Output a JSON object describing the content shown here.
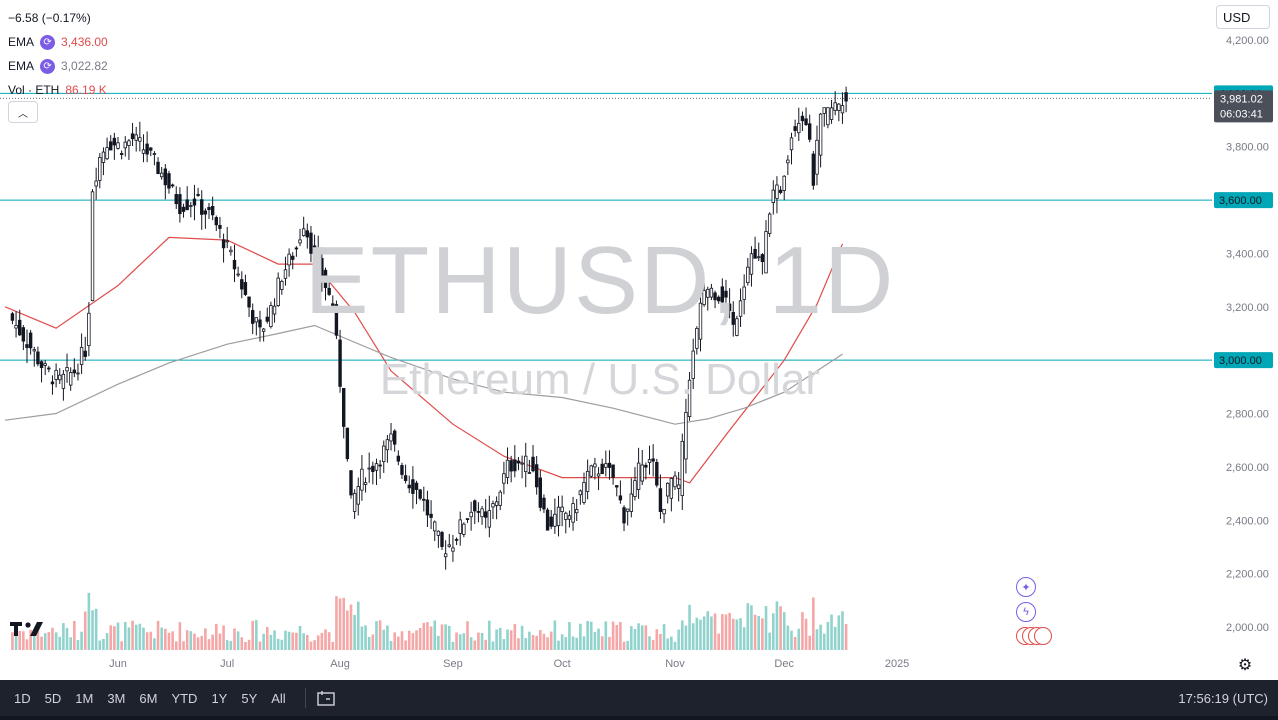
{
  "legend": {
    "change": "−6.58 (−0.17%)",
    "ema1_label": "EMA",
    "ema1_value": "3,436.00",
    "ema2_label": "EMA",
    "ema2_value": "3,022.82",
    "vol_label": "Vol · ETH",
    "vol_value": "86.19 K"
  },
  "currency": "USD",
  "watermark": {
    "symbol": "ETHUSD, 1D",
    "description": "Ethereum / U.S. Dollar"
  },
  "price_label": {
    "price": "3,981.02",
    "countdown": "06:03:41"
  },
  "bottom_bar": {
    "ranges": [
      "1D",
      "5D",
      "1M",
      "3M",
      "6M",
      "YTD",
      "1Y",
      "5Y",
      "All"
    ],
    "clock": "17:56:19 (UTC)"
  },
  "colors": {
    "up": "#26a69a",
    "down": "#ef5350",
    "ema_fast": "#e04b4b",
    "ema_slow": "#9e9e9e",
    "hline": "#00a7b6",
    "price_tag": "#4a4f5a",
    "vol_up": "#8fd3cc",
    "vol_down": "#f4a7a6"
  },
  "icons": [
    "cycle-icon",
    "chevron-up-icon",
    "tradingview-logo-icon",
    "sparkle-icon",
    "lightning-icon",
    "us-flag-icon",
    "gear-icon",
    "compare-icon"
  ],
  "chart_data": {
    "type": "candlestick",
    "title": "ETHUSD, 1D",
    "subtitle": "Ethereum / U.S. Dollar",
    "xlabel": "",
    "ylabel": "",
    "ylim": [
      1900,
      4270
    ],
    "yticks": [
      "4,200.00",
      "3,800.00",
      "3,400.00",
      "3,200.00",
      "2,800.00",
      "2,600.00",
      "2,400.00",
      "2,200.00",
      "2,000.00"
    ],
    "ytick_values": [
      4200,
      3800,
      3400,
      3200,
      2800,
      2600,
      2400,
      2200,
      2000
    ],
    "xtick_labels": [
      "Jun",
      "Jul",
      "Aug",
      "Sep",
      "Oct",
      "Nov",
      "Dec",
      "2025"
    ],
    "xtick_dates": [
      "2024-06-01",
      "2024-07-01",
      "2024-08-01",
      "2024-09-01",
      "2024-10-01",
      "2024-11-01",
      "2024-12-01",
      "2025-01-01"
    ],
    "horizontal_lines": [
      {
        "value": 4000,
        "label": "4,000.00"
      },
      {
        "value": 3600,
        "label": "3,600.00"
      },
      {
        "value": 3000,
        "label": "3,000.00"
      }
    ],
    "last_price": 3981.02,
    "grid": false,
    "series": [
      {
        "name": "EMA",
        "color": "#e04b4b",
        "points": [
          [
            "2024-05-01",
            3200
          ],
          [
            "2024-05-15",
            3120
          ],
          [
            "2024-06-01",
            3280
          ],
          [
            "2024-06-15",
            3460
          ],
          [
            "2024-07-01",
            3450
          ],
          [
            "2024-07-15",
            3360
          ],
          [
            "2024-07-25",
            3360
          ],
          [
            "2024-08-05",
            3180
          ],
          [
            "2024-08-15",
            2960
          ],
          [
            "2024-09-01",
            2760
          ],
          [
            "2024-09-15",
            2640
          ],
          [
            "2024-10-01",
            2560
          ],
          [
            "2024-10-15",
            2560
          ],
          [
            "2024-11-01",
            2560
          ],
          [
            "2024-11-05",
            2540
          ],
          [
            "2024-11-15",
            2720
          ],
          [
            "2024-12-01",
            3000
          ],
          [
            "2024-12-10",
            3210
          ],
          [
            "2024-12-17",
            3436
          ]
        ]
      },
      {
        "name": "EMA",
        "color": "#9e9e9e",
        "points": [
          [
            "2024-05-01",
            2775
          ],
          [
            "2024-05-15",
            2800
          ],
          [
            "2024-06-01",
            2910
          ],
          [
            "2024-06-15",
            2990
          ],
          [
            "2024-07-01",
            3060
          ],
          [
            "2024-07-15",
            3100
          ],
          [
            "2024-07-25",
            3130
          ],
          [
            "2024-08-15",
            3010
          ],
          [
            "2024-09-01",
            2930
          ],
          [
            "2024-09-15",
            2880
          ],
          [
            "2024-10-01",
            2860
          ],
          [
            "2024-10-15",
            2820
          ],
          [
            "2024-11-01",
            2760
          ],
          [
            "2024-11-10",
            2780
          ],
          [
            "2024-11-20",
            2820
          ],
          [
            "2024-12-01",
            2880
          ],
          [
            "2024-12-10",
            2960
          ],
          [
            "2024-12-17",
            3022.82
          ]
        ]
      }
    ]
  }
}
